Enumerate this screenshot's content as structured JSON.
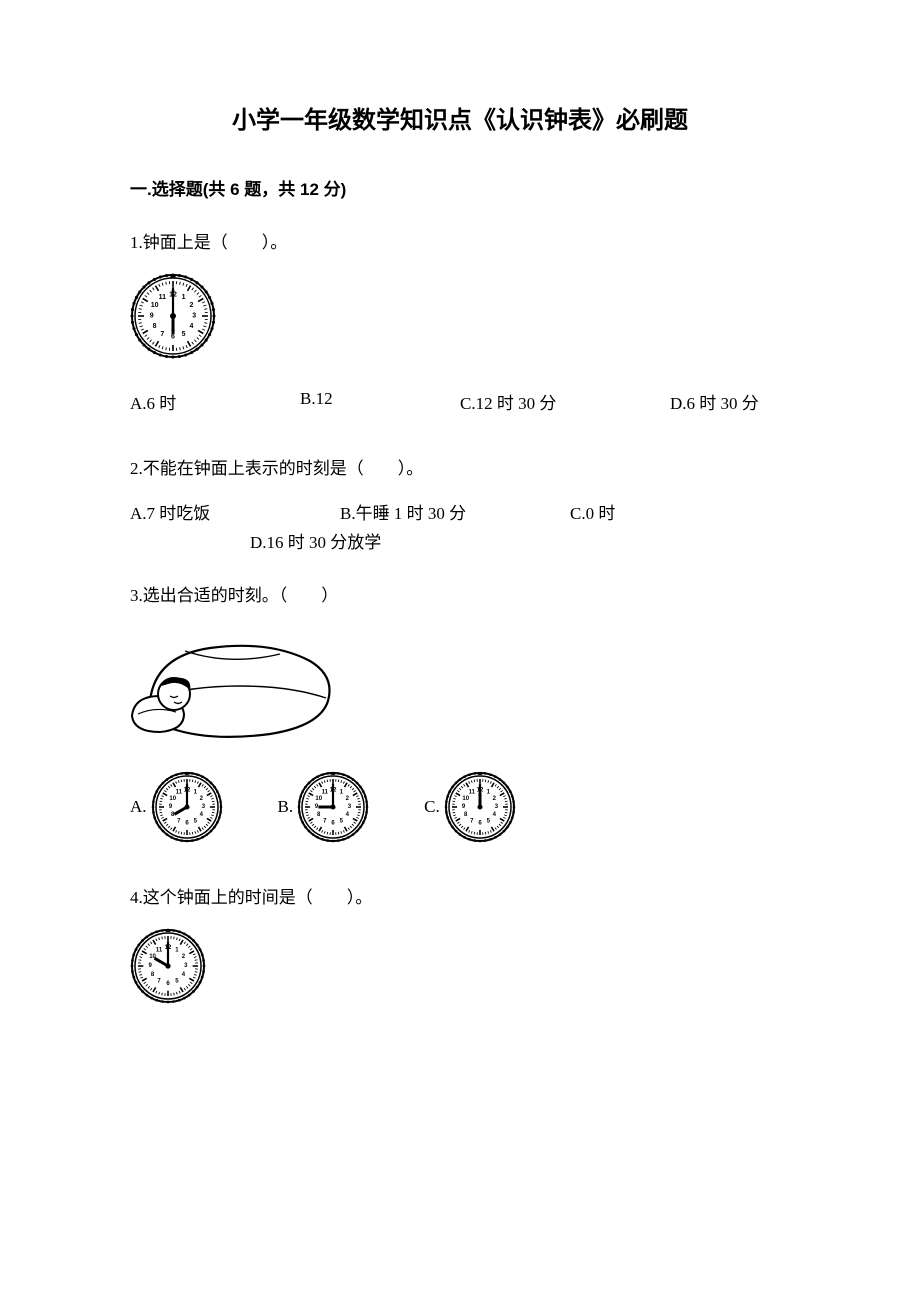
{
  "title": "小学一年级数学知识点《认识钟表》必刷题",
  "section1": {
    "header": "一.选择题(共 6 题，共 12 分)"
  },
  "q1": {
    "text": "1.钟面上是（　　）。",
    "clock": {
      "hour": 6,
      "minute": 0,
      "size": 86,
      "numbers_size": 7
    },
    "a": "A.6 时",
    "b": "B.12",
    "c": "C.12 时 30 分",
    "d": "D.6 时 30 分"
  },
  "q2": {
    "text": "2.不能在钟面上表示的时刻是（　　）。",
    "a": "A.7 时吃饭",
    "b": "B.午睡 1 时 30 分",
    "c": "C.0 时",
    "d": "D.16 时 30 分放学"
  },
  "q3": {
    "text": "3.选出合适的时刻。（　　）",
    "a_label": "A.",
    "b_label": "B.",
    "c_label": "C.",
    "clock_a": {
      "hour": 8,
      "minute": 0,
      "size": 72,
      "numbers_size": 6
    },
    "clock_b": {
      "hour": 9,
      "minute": 0,
      "size": 72,
      "numbers_size": 6
    },
    "clock_c": {
      "hour": 12,
      "minute": 0,
      "size": 72,
      "numbers_size": 6
    }
  },
  "q4": {
    "text": "4.这个钟面上的时间是（　　）。",
    "clock": {
      "hour": 10,
      "minute": 0,
      "size": 76,
      "numbers_size": 6
    }
  },
  "style": {
    "text_color": "#000000",
    "bg_color": "#ffffff",
    "title_fontsize": 24,
    "body_fontsize": 17
  }
}
